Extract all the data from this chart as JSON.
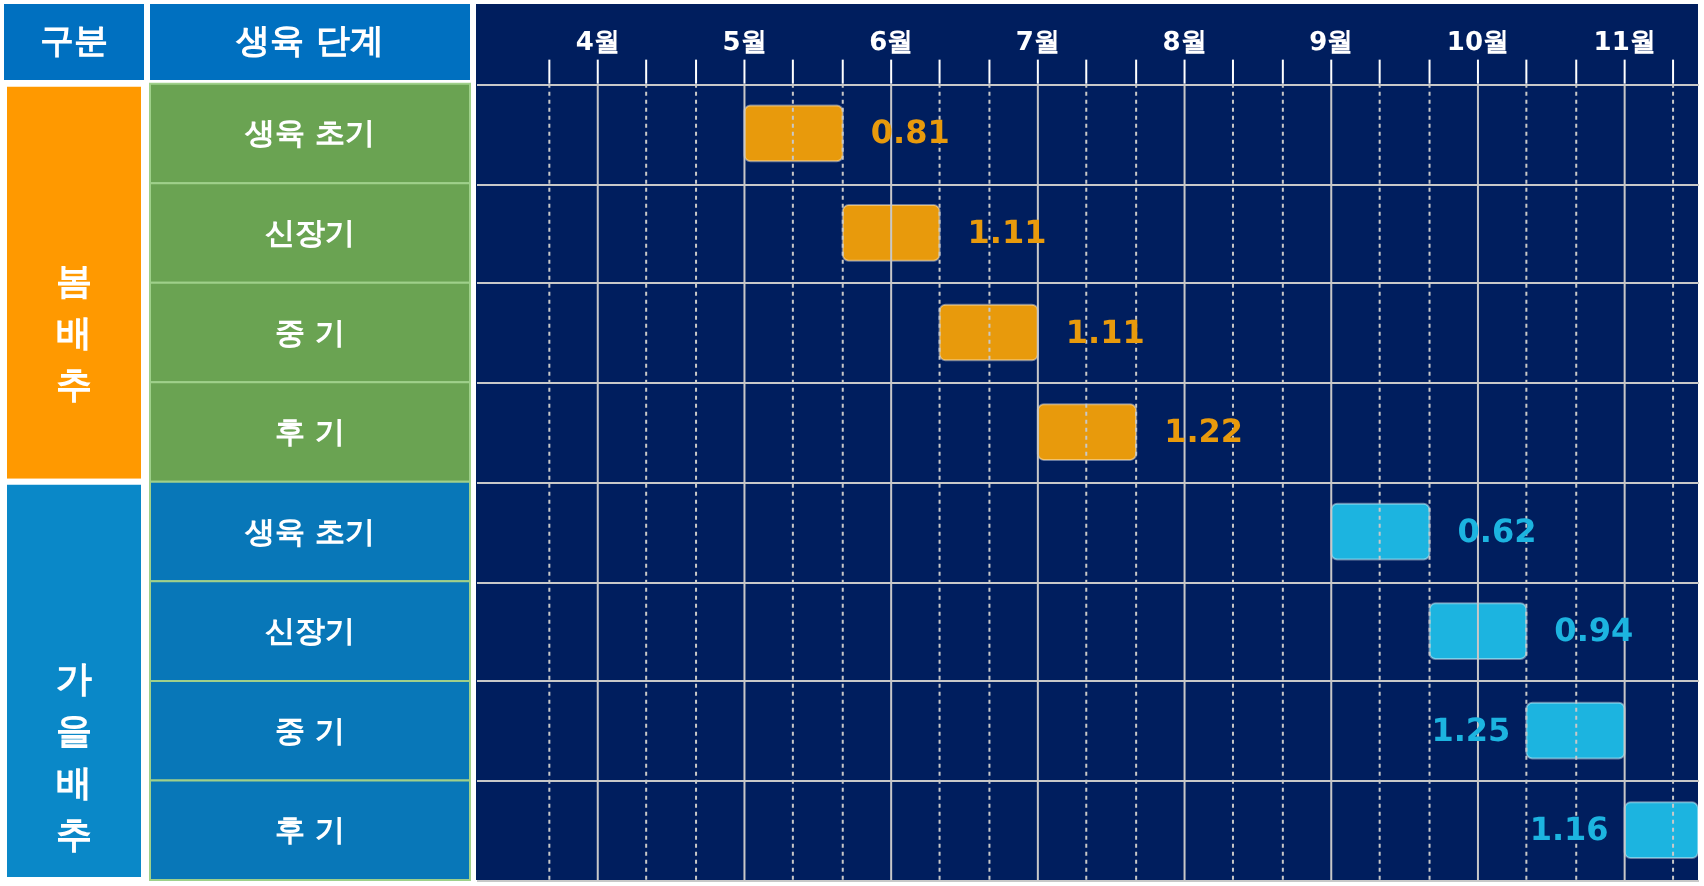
{
  "chart_data": {
    "type": "bar",
    "orientation": "horizontal",
    "ylabel": "생육 단계",
    "annotations": [
      "구분",
      "봄배추",
      "가을배추",
      {
        "text": "0.81",
        "x": 5.67
      },
      {
        "text": "1.11",
        "x": 6.33
      },
      {
        "text": "1.11",
        "x": 7.0
      },
      {
        "text": "1.22",
        "x": 7.67
      },
      {
        "text": "0.62",
        "x": 9.67
      },
      {
        "text": "0.94",
        "x": 10.33
      },
      {
        "text": "1.25",
        "x": 10.33
      },
      {
        "text": "1.16",
        "x": 11.0
      }
    ],
    "categories": [
      "생육 초기",
      "신장기",
      "중  기",
      "후  기",
      "생육 초기",
      "신장기",
      "중  기",
      "후  기"
    ],
    "base": [
      5.0,
      5.67,
      6.33,
      7.0,
      9.0,
      9.67,
      10.33,
      11.0
    ],
    "values": [
      0.67,
      0.66,
      0.67,
      0.67,
      0.67,
      0.66,
      0.67,
      0.5
    ],
    "colors": [
      "#e89a0c",
      "#e89a0c",
      "#e89a0c",
      "#e89a0c",
      "#1cb4e0",
      "#1cb4e0",
      "#1cb4e0",
      "#1cb4e0"
    ],
    "xlim": [
      3.17,
      11.5
    ],
    "xticks": [
      {
        "value": 3.67,
        "label": null
      },
      {
        "value": 4,
        "label": "4월"
      },
      {
        "value": 4.33,
        "label": null
      },
      {
        "value": 4.67,
        "label": null
      },
      {
        "value": 5,
        "label": "5월"
      },
      {
        "value": 5.33,
        "label": null
      },
      {
        "value": 5.67,
        "label": null
      },
      {
        "value": 6,
        "label": "6월"
      },
      {
        "value": 6.33,
        "label": null
      },
      {
        "value": 6.67,
        "label": null
      },
      {
        "value": 7,
        "label": "7월"
      },
      {
        "value": 7.33,
        "label": null
      },
      {
        "value": 7.67,
        "label": null
      },
      {
        "value": 8,
        "label": "8월"
      },
      {
        "value": 8.33,
        "label": null
      },
      {
        "value": 8.67,
        "label": null
      },
      {
        "value": 9,
        "label": "9월"
      },
      {
        "value": 9.33,
        "label": null
      },
      {
        "value": 9.67,
        "label": null
      },
      {
        "value": 10,
        "label": "10월"
      },
      {
        "value": 10.33,
        "label": null
      },
      {
        "value": 10.67,
        "label": null
      },
      {
        "value": 11,
        "label": "11월"
      },
      {
        "value": 11.33,
        "label": null
      }
    ],
    "grid": true
  }
}
